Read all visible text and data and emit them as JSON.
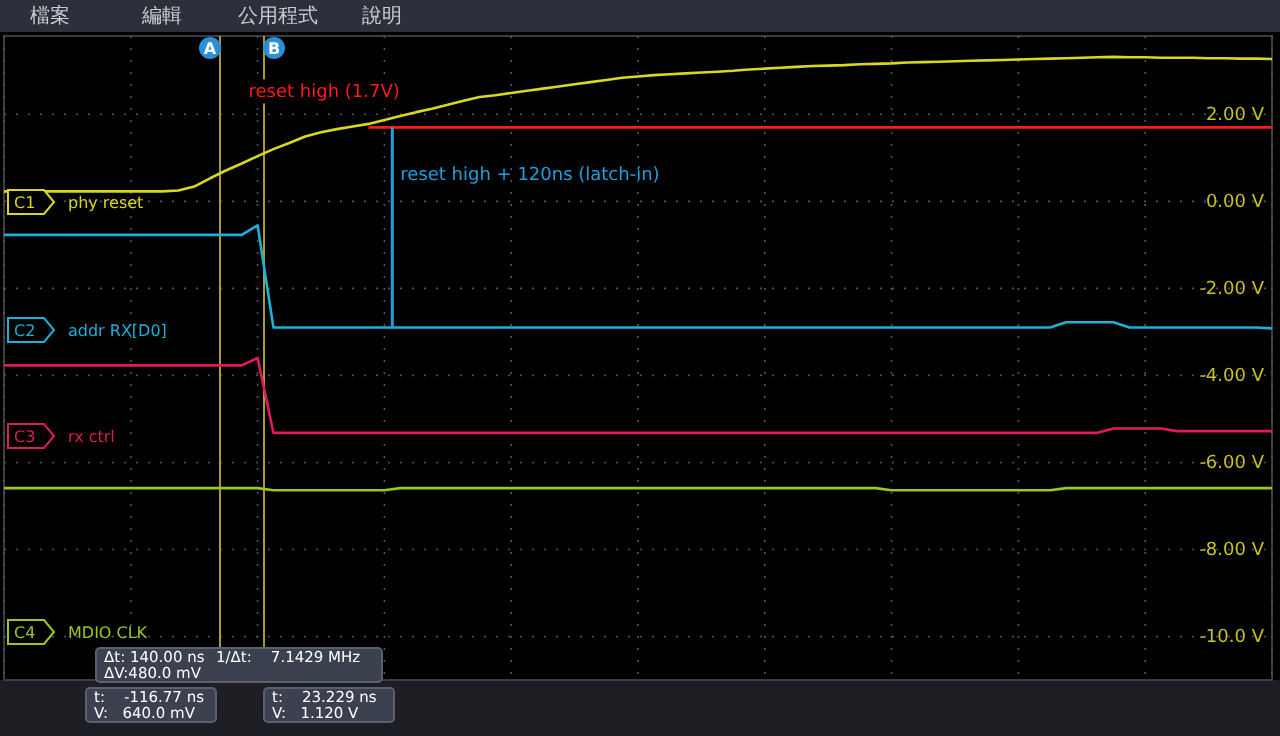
{
  "chart_data": {
    "type": "line",
    "categories": [
      null,
      null,
      null,
      null,
      null,
      null,
      null,
      null,
      null,
      null,
      null,
      null,
      null,
      null,
      null,
      null,
      null,
      null,
      null,
      null,
      null,
      null,
      null,
      null,
      null,
      null,
      null,
      null,
      null,
      null,
      null,
      null,
      null,
      null,
      null,
      null,
      null,
      null,
      null,
      null,
      null,
      null,
      null,
      null,
      null,
      null,
      null,
      null,
      null,
      null,
      null,
      null,
      null,
      null,
      null,
      null,
      null,
      null,
      null,
      null,
      null,
      null,
      null,
      null,
      null,
      null,
      null,
      null,
      null,
      null,
      null,
      null,
      null,
      null,
      null,
      null,
      null,
      null,
      null,
      null,
      null
    ],
    "ylim": [
      -11,
      3.8
    ],
    "yticks": [
      {
        "value": 2,
        "label": "2.00 V"
      },
      {
        "value": 0,
        "label": "0.00 V"
      },
      {
        "value": -2,
        "label": "-2.00 V"
      },
      {
        "value": -4,
        "label": "-4.00 V"
      },
      {
        "value": -6,
        "label": "-6.00 V"
      },
      {
        "value": -8,
        "label": "-8.00 V"
      },
      {
        "value": -10,
        "label": "-10.0 V"
      }
    ],
    "tick_labels": "y",
    "grid": true,
    "legend": "left",
    "marker": "none",
    "line_style": "solid",
    "series": [
      {
        "name": "phy reset",
        "color": "#d8d820",
        "values": [
          0.23,
          0.23,
          0.23,
          0.23,
          0.23,
          0.23,
          0.23,
          0.23,
          0.23,
          0.23,
          0.23,
          0.25,
          0.34,
          0.53,
          0.71,
          0.87,
          1.04,
          1.2,
          1.34,
          1.49,
          1.59,
          1.66,
          1.72,
          1.78,
          1.87,
          1.96,
          2.05,
          2.13,
          2.22,
          2.31,
          2.4,
          2.44,
          2.49,
          2.54,
          2.59,
          2.64,
          2.69,
          2.74,
          2.79,
          2.84,
          2.87,
          2.9,
          2.92,
          2.94,
          2.96,
          2.98,
          3.0,
          3.03,
          3.05,
          3.07,
          3.09,
          3.11,
          3.12,
          3.13,
          3.15,
          3.16,
          3.17,
          3.19,
          3.2,
          3.21,
          3.22,
          3.23,
          3.24,
          3.25,
          3.26,
          3.27,
          3.28,
          3.29,
          3.3,
          3.31,
          3.32,
          3.31,
          3.31,
          3.3,
          3.3,
          3.3,
          3.29,
          3.29,
          3.28,
          3.28,
          3.27
        ]
      },
      {
        "name": "addr RX[D0]",
        "color": "#1eb0d8",
        "values": [
          -0.77,
          -0.77,
          -0.77,
          -0.77,
          -0.77,
          -0.77,
          -0.77,
          -0.77,
          -0.77,
          -0.77,
          -0.77,
          -0.77,
          -0.77,
          -0.77,
          -0.77,
          -0.77,
          -0.55,
          -2.9,
          -2.9,
          -2.9,
          -2.9,
          -2.9,
          -2.9,
          -2.9,
          -2.9,
          -2.9,
          -2.9,
          -2.9,
          -2.9,
          -2.9,
          -2.9,
          -2.9,
          -2.9,
          -2.9,
          -2.9,
          -2.9,
          -2.9,
          -2.9,
          -2.9,
          -2.9,
          -2.9,
          -2.9,
          -2.9,
          -2.9,
          -2.9,
          -2.9,
          -2.9,
          -2.9,
          -2.9,
          -2.9,
          -2.9,
          -2.9,
          -2.9,
          -2.9,
          -2.9,
          -2.9,
          -2.9,
          -2.9,
          -2.9,
          -2.9,
          -2.9,
          -2.9,
          -2.9,
          -2.9,
          -2.9,
          -2.9,
          -2.9,
          -2.78,
          -2.78,
          -2.78,
          -2.78,
          -2.9,
          -2.9,
          -2.9,
          -2.9,
          -2.9,
          -2.9,
          -2.9,
          -2.9,
          -2.9,
          -2.92
        ]
      },
      {
        "name": "rx ctrl",
        "color": "#e01c58",
        "values": [
          -3.77,
          -3.77,
          -3.77,
          -3.77,
          -3.77,
          -3.77,
          -3.77,
          -3.77,
          -3.77,
          -3.77,
          -3.77,
          -3.77,
          -3.77,
          -3.77,
          -3.77,
          -3.77,
          -3.6,
          -5.32,
          -5.32,
          -5.32,
          -5.32,
          -5.32,
          -5.32,
          -5.32,
          -5.32,
          -5.32,
          -5.32,
          -5.32,
          -5.32,
          -5.32,
          -5.32,
          -5.32,
          -5.32,
          -5.32,
          -5.32,
          -5.32,
          -5.32,
          -5.32,
          -5.32,
          -5.32,
          -5.32,
          -5.32,
          -5.32,
          -5.32,
          -5.32,
          -5.32,
          -5.32,
          -5.32,
          -5.32,
          -5.32,
          -5.32,
          -5.32,
          -5.32,
          -5.32,
          -5.32,
          -5.32,
          -5.32,
          -5.32,
          -5.32,
          -5.32,
          -5.32,
          -5.32,
          -5.32,
          -5.32,
          -5.32,
          -5.32,
          -5.32,
          -5.32,
          -5.32,
          -5.32,
          -5.22,
          -5.22,
          -5.22,
          -5.22,
          -5.28,
          -5.28,
          -5.28,
          -5.28,
          -5.28,
          -5.28,
          -5.28
        ]
      },
      {
        "name": "MDIO CLK",
        "color": "#9cc81c",
        "values": [
          -6.59,
          -6.59,
          -6.59,
          -6.59,
          -6.59,
          -6.59,
          -6.59,
          -6.59,
          -6.59,
          -6.59,
          -6.59,
          -6.59,
          -6.59,
          -6.59,
          -6.59,
          -6.59,
          -6.59,
          -6.64,
          -6.64,
          -6.64,
          -6.64,
          -6.64,
          -6.64,
          -6.64,
          -6.64,
          -6.59,
          -6.59,
          -6.59,
          -6.59,
          -6.59,
          -6.59,
          -6.59,
          -6.59,
          -6.59,
          -6.59,
          -6.59,
          -6.59,
          -6.59,
          -6.59,
          -6.59,
          -6.59,
          -6.59,
          -6.59,
          -6.59,
          -6.59,
          -6.59,
          -6.59,
          -6.59,
          -6.59,
          -6.59,
          -6.59,
          -6.59,
          -6.59,
          -6.59,
          -6.59,
          -6.59,
          -6.64,
          -6.64,
          -6.64,
          -6.64,
          -6.64,
          -6.64,
          -6.64,
          -6.64,
          -6.64,
          -6.64,
          -6.64,
          -6.59,
          -6.59,
          -6.59,
          -6.59,
          -6.59,
          -6.59,
          -6.59,
          -6.59,
          -6.59,
          -6.59,
          -6.59,
          -6.59,
          -6.59,
          -6.59
        ]
      },
      {
        "color": "#ff1a1a",
        "values": [
          null,
          null,
          null,
          null,
          null,
          null,
          null,
          null,
          null,
          null,
          null,
          null,
          null,
          null,
          null,
          null,
          null,
          null,
          null,
          null,
          null,
          null,
          null,
          1.7,
          1.7,
          1.7,
          1.7,
          1.7,
          1.7,
          1.7,
          1.7,
          1.7,
          1.7,
          1.7,
          1.7,
          1.7,
          1.7,
          1.7,
          1.7,
          1.7,
          1.7,
          1.7,
          1.7,
          1.7,
          1.7,
          1.7,
          1.7,
          1.7,
          1.7,
          1.7,
          1.7,
          1.7,
          1.7,
          1.7,
          1.7,
          1.7,
          1.7,
          1.7,
          1.7,
          1.7,
          1.7,
          1.7,
          1.7,
          1.7,
          1.7,
          1.7,
          1.7,
          1.7,
          1.7,
          1.7,
          1.7,
          1.7,
          1.7,
          1.7,
          1.7,
          1.7,
          1.7,
          1.7,
          1.7,
          1.7,
          1.7
        ]
      }
    ],
    "annotations": [
      "C1",
      "C2",
      "C3",
      "C4",
      "reset high (1.7V)",
      "reset high + 120ns (latch-in)",
      "A",
      "B",
      "Δt: 140.00 ns",
      "1/Δt:    7.1429 MHz",
      "ΔV:480.0 mV",
      "t:    -116.77 ns",
      "V:   640.0 mV",
      "t:    23.229 ns",
      "V:   1.120 V",
      "檔案",
      "編輯",
      "公用程式",
      "說明"
    ]
  }
}
